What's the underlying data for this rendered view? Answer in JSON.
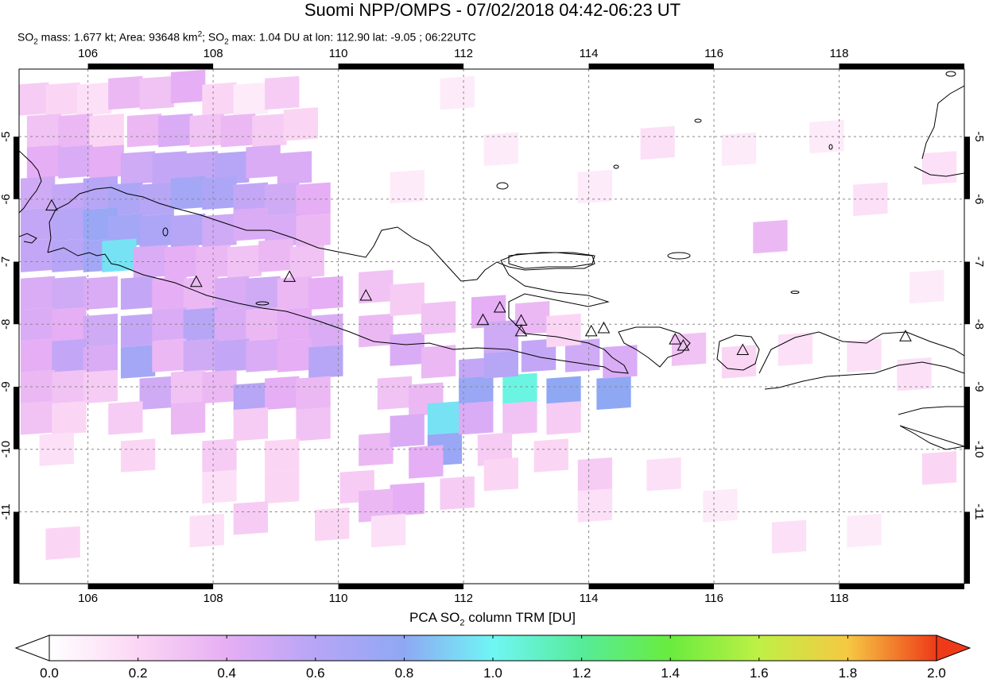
{
  "header": {
    "title": "Suomi NPP/OMPS - 07/02/2018 04:42-06:23 UT",
    "subtitle_parts": {
      "so2_prefix": "SO",
      "so2_sub": "2",
      "mass_text": " mass: 1.677 kt; Area: 93648 km",
      "area_sup": "2",
      "max_prefix": "; SO",
      "max_sub": "2",
      "max_text": " max: 1.04 DU at lon: 112.90 lat: -9.05 ; 06:22UTC"
    }
  },
  "map": {
    "lon_range": [
      104.9,
      120.0
    ],
    "lat_range": [
      -12.15,
      -3.92
    ],
    "lon_ticks": [
      "106",
      "108",
      "110",
      "112",
      "114",
      "116",
      "118"
    ],
    "lat_ticks": [
      "-5",
      "-6",
      "-7",
      "-8",
      "-9",
      "-10",
      "-11"
    ],
    "gridlines": "dashed",
    "colors": {
      "coast": "#000000",
      "grid": "#888888",
      "volcano": "#000000"
    }
  },
  "volcanoes": [
    {
      "lon": 105.42,
      "lat": -6.1
    },
    {
      "lon": 107.73,
      "lat": -7.32
    },
    {
      "lon": 109.22,
      "lat": -7.24
    },
    {
      "lon": 110.44,
      "lat": -7.54
    },
    {
      "lon": 112.31,
      "lat": -7.93
    },
    {
      "lon": 112.58,
      "lat": -7.73
    },
    {
      "lon": 112.92,
      "lat": -7.94
    },
    {
      "lon": 112.92,
      "lat": -8.11
    },
    {
      "lon": 114.04,
      "lat": -8.11
    },
    {
      "lon": 114.24,
      "lat": -8.06
    },
    {
      "lon": 115.38,
      "lat": -8.24
    },
    {
      "lon": 115.51,
      "lat": -8.34
    },
    {
      "lon": 116.46,
      "lat": -8.41
    },
    {
      "lon": 119.06,
      "lat": -8.19
    }
  ],
  "colorbar": {
    "title_prefix": "PCA SO",
    "title_sub": "2",
    "title_suffix": " column TRM [DU]",
    "range": [
      0.0,
      2.0
    ],
    "tick_labels": [
      "0.0",
      "0.2",
      "0.4",
      "0.6",
      "0.8",
      "1.0",
      "1.2",
      "1.4",
      "1.6",
      "1.8",
      "2.0"
    ],
    "stops": [
      {
        "v": 0.0,
        "color": "#ffffff"
      },
      {
        "v": 0.2,
        "color": "#fbd6f4"
      },
      {
        "v": 0.4,
        "color": "#e6aef4"
      },
      {
        "v": 0.6,
        "color": "#b7a5f6"
      },
      {
        "v": 0.8,
        "color": "#8fa8f4"
      },
      {
        "v": 1.0,
        "color": "#6ff6f4"
      },
      {
        "v": 1.2,
        "color": "#56ec9a"
      },
      {
        "v": 1.4,
        "color": "#69ec3e"
      },
      {
        "v": 1.6,
        "color": "#bff045"
      },
      {
        "v": 1.8,
        "color": "#f6c843"
      },
      {
        "v": 2.0,
        "color": "#ee3a18"
      }
    ]
  },
  "so2_cells": [
    {
      "lon": 105.1,
      "lat": -4.4,
      "value": 0.25
    },
    {
      "lon": 105.6,
      "lat": -4.4,
      "value": 0.2
    },
    {
      "lon": 106.1,
      "lat": -4.4,
      "value": 0.15
    },
    {
      "lon": 106.6,
      "lat": -4.3,
      "value": 0.35
    },
    {
      "lon": 107.1,
      "lat": -4.3,
      "value": 0.3
    },
    {
      "lon": 107.6,
      "lat": -4.2,
      "value": 0.4
    },
    {
      "lon": 108.1,
      "lat": -4.4,
      "value": 0.2
    },
    {
      "lon": 108.6,
      "lat": -4.4,
      "value": 0.1
    },
    {
      "lon": 109.1,
      "lat": -4.3,
      "value": 0.25
    },
    {
      "lon": 105.3,
      "lat": -4.9,
      "value": 0.3
    },
    {
      "lon": 105.8,
      "lat": -4.9,
      "value": 0.35
    },
    {
      "lon": 106.3,
      "lat": -4.9,
      "value": 0.2
    },
    {
      "lon": 106.9,
      "lat": -4.9,
      "value": 0.35
    },
    {
      "lon": 107.4,
      "lat": -4.9,
      "value": 0.45
    },
    {
      "lon": 107.9,
      "lat": -4.9,
      "value": 0.3
    },
    {
      "lon": 108.4,
      "lat": -4.9,
      "value": 0.35
    },
    {
      "lon": 108.9,
      "lat": -4.9,
      "value": 0.25
    },
    {
      "lon": 109.4,
      "lat": -4.8,
      "value": 0.2
    },
    {
      "lon": 105.3,
      "lat": -5.4,
      "value": 0.4
    },
    {
      "lon": 105.8,
      "lat": -5.4,
      "value": 0.45
    },
    {
      "lon": 106.3,
      "lat": -5.4,
      "value": 0.4
    },
    {
      "lon": 106.8,
      "lat": -5.5,
      "value": 0.5
    },
    {
      "lon": 107.3,
      "lat": -5.5,
      "value": 0.55
    },
    {
      "lon": 107.8,
      "lat": -5.5,
      "value": 0.55
    },
    {
      "lon": 108.3,
      "lat": -5.5,
      "value": 0.6
    },
    {
      "lon": 108.8,
      "lat": -5.4,
      "value": 0.45
    },
    {
      "lon": 109.3,
      "lat": -5.5,
      "value": 0.45
    },
    {
      "lon": 105.2,
      "lat": -5.9,
      "value": 0.5
    },
    {
      "lon": 105.7,
      "lat": -6.0,
      "value": 0.55
    },
    {
      "lon": 106.2,
      "lat": -5.9,
      "value": 0.6
    },
    {
      "lon": 106.6,
      "lat": -6.0,
      "value": 0.65
    },
    {
      "lon": 107.1,
      "lat": -6.0,
      "value": 0.6
    },
    {
      "lon": 107.6,
      "lat": -5.9,
      "value": 0.7
    },
    {
      "lon": 108.1,
      "lat": -5.9,
      "value": 0.65
    },
    {
      "lon": 108.6,
      "lat": -6.0,
      "value": 0.55
    },
    {
      "lon": 109.1,
      "lat": -6.0,
      "value": 0.5
    },
    {
      "lon": 109.6,
      "lat": -6.0,
      "value": 0.4
    },
    {
      "lon": 105.2,
      "lat": -6.4,
      "value": 0.55
    },
    {
      "lon": 105.7,
      "lat": -6.4,
      "value": 0.6
    },
    {
      "lon": 106.2,
      "lat": -6.4,
      "value": 0.75
    },
    {
      "lon": 106.6,
      "lat": -6.5,
      "value": 0.7
    },
    {
      "lon": 107.1,
      "lat": -6.5,
      "value": 0.65
    },
    {
      "lon": 107.6,
      "lat": -6.5,
      "value": 0.6
    },
    {
      "lon": 108.1,
      "lat": -6.5,
      "value": 0.5
    },
    {
      "lon": 108.6,
      "lat": -6.4,
      "value": 0.45
    },
    {
      "lon": 109.1,
      "lat": -6.5,
      "value": 0.45
    },
    {
      "lon": 109.6,
      "lat": -6.5,
      "value": 0.35
    },
    {
      "lon": 105.2,
      "lat": -6.9,
      "value": 0.55
    },
    {
      "lon": 105.7,
      "lat": -6.9,
      "value": 0.6
    },
    {
      "lon": 106.2,
      "lat": -6.9,
      "value": 0.7
    },
    {
      "lon": 106.5,
      "lat": -6.9,
      "value": 0.95
    },
    {
      "lon": 107.0,
      "lat": -7.0,
      "value": 0.45
    },
    {
      "lon": 107.5,
      "lat": -7.0,
      "value": 0.4
    },
    {
      "lon": 108.0,
      "lat": -7.0,
      "value": 0.35
    },
    {
      "lon": 108.5,
      "lat": -7.0,
      "value": 0.3
    },
    {
      "lon": 109.0,
      "lat": -6.9,
      "value": 0.35
    },
    {
      "lon": 109.5,
      "lat": -7.0,
      "value": 0.3
    },
    {
      "lon": 105.2,
      "lat": -7.5,
      "value": 0.45
    },
    {
      "lon": 105.7,
      "lat": -7.5,
      "value": 0.5
    },
    {
      "lon": 106.2,
      "lat": -7.5,
      "value": 0.45
    },
    {
      "lon": 106.8,
      "lat": -7.5,
      "value": 0.55
    },
    {
      "lon": 107.3,
      "lat": -7.5,
      "value": 0.4
    },
    {
      "lon": 107.8,
      "lat": -7.5,
      "value": 0.35
    },
    {
      "lon": 108.3,
      "lat": -7.5,
      "value": 0.45
    },
    {
      "lon": 108.8,
      "lat": -7.5,
      "value": 0.5
    },
    {
      "lon": 109.3,
      "lat": -7.5,
      "value": 0.35
    },
    {
      "lon": 109.8,
      "lat": -7.5,
      "value": 0.4
    },
    {
      "lon": 105.2,
      "lat": -8.0,
      "value": 0.45
    },
    {
      "lon": 105.7,
      "lat": -8.0,
      "value": 0.4
    },
    {
      "lon": 106.2,
      "lat": -8.1,
      "value": 0.5
    },
    {
      "lon": 106.8,
      "lat": -8.1,
      "value": 0.55
    },
    {
      "lon": 107.3,
      "lat": -8.0,
      "value": 0.45
    },
    {
      "lon": 107.8,
      "lat": -8.0,
      "value": 0.6
    },
    {
      "lon": 108.3,
      "lat": -8.0,
      "value": 0.45
    },
    {
      "lon": 108.8,
      "lat": -8.0,
      "value": 0.35
    },
    {
      "lon": 109.3,
      "lat": -8.0,
      "value": 0.4
    },
    {
      "lon": 109.8,
      "lat": -8.1,
      "value": 0.45
    },
    {
      "lon": 105.2,
      "lat": -8.5,
      "value": 0.4
    },
    {
      "lon": 105.7,
      "lat": -8.5,
      "value": 0.55
    },
    {
      "lon": 106.2,
      "lat": -8.6,
      "value": 0.45
    },
    {
      "lon": 106.8,
      "lat": -8.6,
      "value": 0.7
    },
    {
      "lon": 107.3,
      "lat": -8.5,
      "value": 0.35
    },
    {
      "lon": 107.8,
      "lat": -8.5,
      "value": 0.5
    },
    {
      "lon": 108.3,
      "lat": -8.5,
      "value": 0.55
    },
    {
      "lon": 108.8,
      "lat": -8.5,
      "value": 0.45
    },
    {
      "lon": 109.3,
      "lat": -8.5,
      "value": 0.4
    },
    {
      "lon": 109.8,
      "lat": -8.6,
      "value": 0.6
    },
    {
      "lon": 105.2,
      "lat": -9.0,
      "value": 0.35
    },
    {
      "lon": 105.7,
      "lat": -9.0,
      "value": 0.3
    },
    {
      "lon": 106.2,
      "lat": -9.0,
      "value": 0.25
    },
    {
      "lon": 107.1,
      "lat": -9.1,
      "value": 0.5
    },
    {
      "lon": 107.6,
      "lat": -9.0,
      "value": 0.3
    },
    {
      "lon": 108.1,
      "lat": -9.0,
      "value": 0.35
    },
    {
      "lon": 108.6,
      "lat": -9.2,
      "value": 0.6
    },
    {
      "lon": 109.1,
      "lat": -9.1,
      "value": 0.4
    },
    {
      "lon": 109.6,
      "lat": -9.1,
      "value": 0.35
    },
    {
      "lon": 105.2,
      "lat": -9.5,
      "value": 0.3
    },
    {
      "lon": 105.7,
      "lat": -9.5,
      "value": 0.2
    },
    {
      "lon": 106.6,
      "lat": -9.5,
      "value": 0.25
    },
    {
      "lon": 107.6,
      "lat": -9.5,
      "value": 0.35
    },
    {
      "lon": 108.6,
      "lat": -9.6,
      "value": 0.25
    },
    {
      "lon": 109.6,
      "lat": -9.6,
      "value": 0.3
    },
    {
      "lon": 105.5,
      "lat": -10.0,
      "value": 0.15
    },
    {
      "lon": 106.8,
      "lat": -10.1,
      "value": 0.2
    },
    {
      "lon": 108.1,
      "lat": -10.1,
      "value": 0.25
    },
    {
      "lon": 109.1,
      "lat": -10.1,
      "value": 0.2
    },
    {
      "lon": 110.6,
      "lat": -10.0,
      "value": 0.35
    },
    {
      "lon": 108.1,
      "lat": -10.6,
      "value": 0.15
    },
    {
      "lon": 109.1,
      "lat": -10.6,
      "value": 0.2
    },
    {
      "lon": 110.3,
      "lat": -10.6,
      "value": 0.25
    },
    {
      "lon": 111.1,
      "lat": -10.8,
      "value": 0.4
    },
    {
      "lon": 110.6,
      "lat": -10.9,
      "value": 0.35
    },
    {
      "lon": 105.6,
      "lat": -11.5,
      "value": 0.2
    },
    {
      "lon": 107.9,
      "lat": -11.3,
      "value": 0.15
    },
    {
      "lon": 108.6,
      "lat": -11.1,
      "value": 0.25
    },
    {
      "lon": 109.9,
      "lat": -11.2,
      "value": 0.2
    },
    {
      "lon": 110.8,
      "lat": -11.3,
      "value": 0.15
    },
    {
      "lon": 110.6,
      "lat": -7.4,
      "value": 0.3
    },
    {
      "lon": 110.6,
      "lat": -8.1,
      "value": 0.35
    },
    {
      "lon": 111.1,
      "lat": -8.4,
      "value": 0.45
    },
    {
      "lon": 111.1,
      "lat": -7.6,
      "value": 0.25
    },
    {
      "lon": 111.6,
      "lat": -7.9,
      "value": 0.3
    },
    {
      "lon": 111.6,
      "lat": -8.6,
      "value": 0.35
    },
    {
      "lon": 110.9,
      "lat": -9.1,
      "value": 0.3
    },
    {
      "lon": 111.4,
      "lat": -9.2,
      "value": 0.35
    },
    {
      "lon": 111.1,
      "lat": -9.7,
      "value": 0.45
    },
    {
      "lon": 111.7,
      "lat": -9.5,
      "value": 0.95
    },
    {
      "lon": 111.7,
      "lat": -10.0,
      "value": 0.75
    },
    {
      "lon": 111.4,
      "lat": -10.2,
      "value": 0.4
    },
    {
      "lon": 112.2,
      "lat": -8.8,
      "value": 0.55
    },
    {
      "lon": 112.2,
      "lat": -9.1,
      "value": 0.75
    },
    {
      "lon": 112.9,
      "lat": -9.05,
      "value": 1.04
    },
    {
      "lon": 113.6,
      "lat": -9.1,
      "value": 0.8
    },
    {
      "lon": 114.4,
      "lat": -9.1,
      "value": 0.8
    },
    {
      "lon": 112.2,
      "lat": -9.5,
      "value": 0.45
    },
    {
      "lon": 112.9,
      "lat": -9.5,
      "value": 0.3
    },
    {
      "lon": 113.6,
      "lat": -9.5,
      "value": 0.25
    },
    {
      "lon": 112.6,
      "lat": -8.6,
      "value": 0.6
    },
    {
      "lon": 113.2,
      "lat": -8.5,
      "value": 0.55
    },
    {
      "lon": 113.9,
      "lat": -8.5,
      "value": 0.5
    },
    {
      "lon": 114.5,
      "lat": -8.6,
      "value": 0.45
    },
    {
      "lon": 112.4,
      "lat": -7.8,
      "value": 0.4
    },
    {
      "lon": 113.1,
      "lat": -7.9,
      "value": 0.35
    },
    {
      "lon": 112.6,
      "lat": -8.2,
      "value": 0.5
    },
    {
      "lon": 113.6,
      "lat": -8.1,
      "value": 0.2
    },
    {
      "lon": 112.5,
      "lat": -10.0,
      "value": 0.25
    },
    {
      "lon": 113.4,
      "lat": -10.1,
      "value": 0.2
    },
    {
      "lon": 114.1,
      "lat": -10.4,
      "value": 0.25
    },
    {
      "lon": 112.6,
      "lat": -10.4,
      "value": 0.2
    },
    {
      "lon": 111.9,
      "lat": -10.7,
      "value": 0.25
    },
    {
      "lon": 114.1,
      "lat": -10.9,
      "value": 0.15
    },
    {
      "lon": 115.2,
      "lat": -10.4,
      "value": 0.15
    },
    {
      "lon": 116.1,
      "lat": -10.9,
      "value": 0.1
    },
    {
      "lon": 117.2,
      "lat": -11.4,
      "value": 0.15
    },
    {
      "lon": 118.4,
      "lat": -11.3,
      "value": 0.1
    },
    {
      "lon": 119.6,
      "lat": -10.3,
      "value": 0.2
    },
    {
      "lon": 115.6,
      "lat": -8.4,
      "value": 0.3
    },
    {
      "lon": 116.4,
      "lat": -8.6,
      "value": 0.2
    },
    {
      "lon": 117.3,
      "lat": -8.4,
      "value": 0.15
    },
    {
      "lon": 118.4,
      "lat": -8.5,
      "value": 0.15
    },
    {
      "lon": 119.2,
      "lat": -8.8,
      "value": 0.15
    },
    {
      "lon": 116.9,
      "lat": -6.6,
      "value": 0.35
    },
    {
      "lon": 115.1,
      "lat": -5.1,
      "value": 0.15
    },
    {
      "lon": 116.4,
      "lat": -5.2,
      "value": 0.1
    },
    {
      "lon": 117.8,
      "lat": -5.0,
      "value": 0.1
    },
    {
      "lon": 118.5,
      "lat": -6.0,
      "value": 0.15
    },
    {
      "lon": 119.4,
      "lat": -7.4,
      "value": 0.1
    },
    {
      "lon": 119.6,
      "lat": -5.5,
      "value": 0.15
    },
    {
      "lon": 114.1,
      "lat": -5.8,
      "value": 0.1
    },
    {
      "lon": 112.6,
      "lat": -5.2,
      "value": 0.1
    },
    {
      "lon": 111.1,
      "lat": -5.8,
      "value": 0.1
    },
    {
      "lon": 111.9,
      "lat": -4.3,
      "value": 0.1
    }
  ]
}
